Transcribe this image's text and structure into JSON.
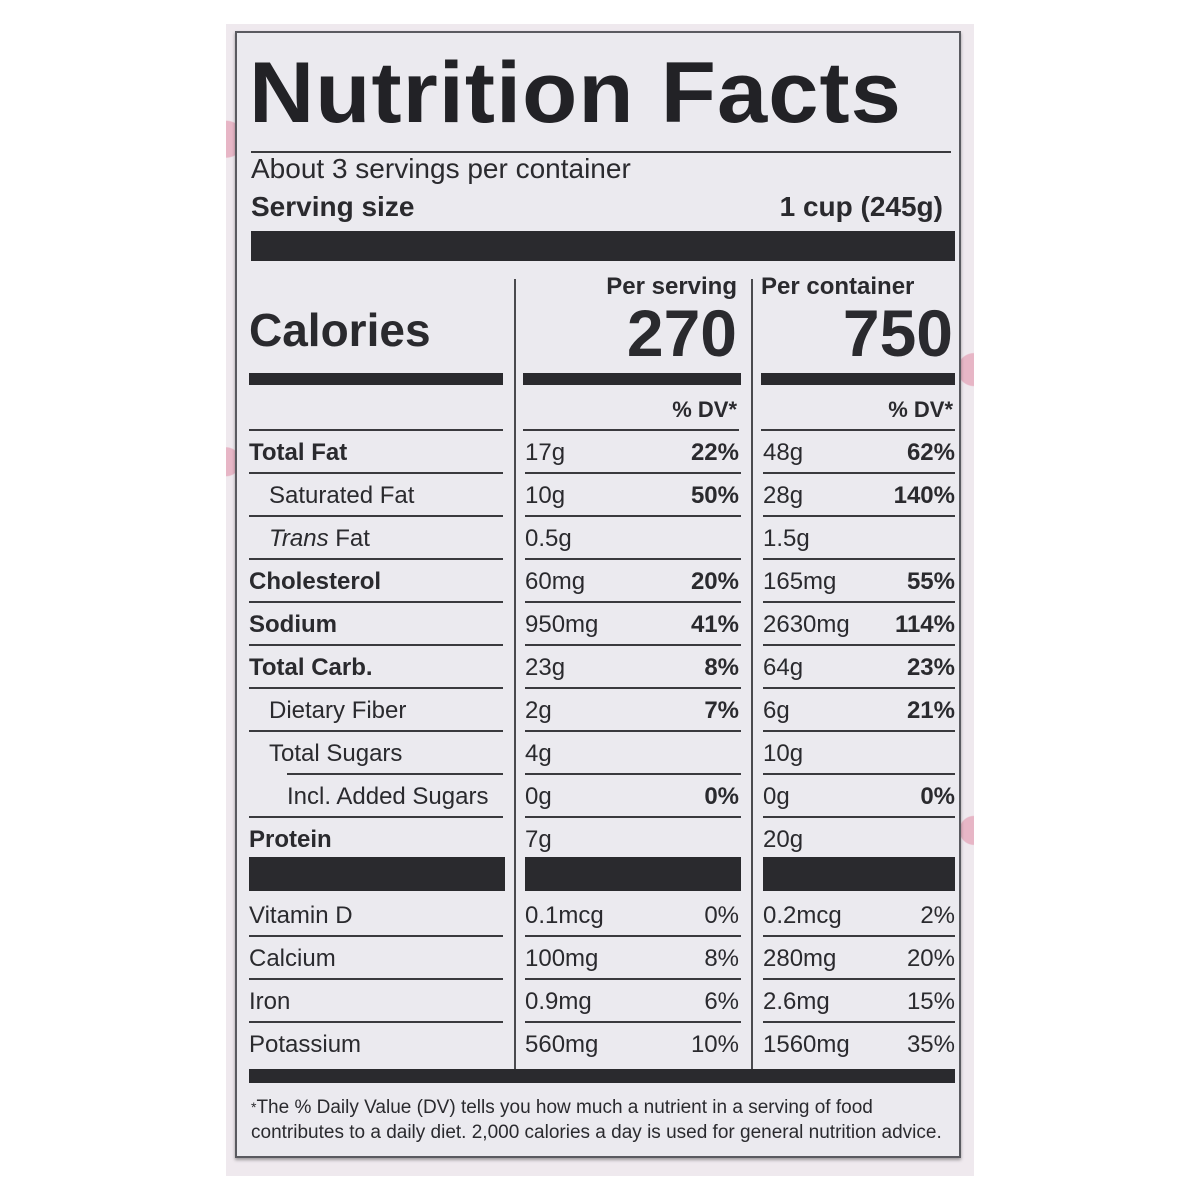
{
  "label": {
    "title": "Nutrition Facts",
    "servings_per_container": "About 3 servings per container",
    "serving_size_label": "Serving size",
    "serving_size_value": "1 cup (245g)",
    "calories_label": "Calories",
    "columns": [
      {
        "header": "Per serving",
        "calories": "270",
        "dv_header": "% DV*"
      },
      {
        "header": "Per container",
        "calories": "750",
        "dv_header": "% DV*"
      }
    ],
    "nutrients": [
      {
        "name": "Total Fat",
        "bold": true,
        "indent": 0,
        "serving": "17g",
        "serving_dv": "22%",
        "container": "48g",
        "container_dv": "62%"
      },
      {
        "name": "Saturated Fat",
        "bold": false,
        "indent": 1,
        "serving": "10g",
        "serving_dv": "50%",
        "container": "28g",
        "container_dv": "140%"
      },
      {
        "name_italic": "Trans",
        "name": " Fat",
        "bold": false,
        "indent": 1,
        "serving": "0.5g",
        "serving_dv": "",
        "container": "1.5g",
        "container_dv": ""
      },
      {
        "name": "Cholesterol",
        "bold": true,
        "indent": 0,
        "serving": "60mg",
        "serving_dv": "20%",
        "container": "165mg",
        "container_dv": "55%"
      },
      {
        "name": "Sodium",
        "bold": true,
        "indent": 0,
        "serving": "950mg",
        "serving_dv": "41%",
        "container": "2630mg",
        "container_dv": "114%"
      },
      {
        "name": "Total Carb.",
        "bold": true,
        "indent": 0,
        "serving": "23g",
        "serving_dv": "8%",
        "container": "64g",
        "container_dv": "23%"
      },
      {
        "name": "Dietary Fiber",
        "bold": false,
        "indent": 1,
        "serving": "2g",
        "serving_dv": "7%",
        "container": "6g",
        "container_dv": "21%"
      },
      {
        "name": "Total Sugars",
        "bold": false,
        "indent": 1,
        "serving": "4g",
        "serving_dv": "",
        "container": "10g",
        "container_dv": ""
      },
      {
        "name": "Incl. Added Sugars",
        "bold": false,
        "indent": 2,
        "serving": "0g",
        "serving_dv": "0%",
        "container": "0g",
        "container_dv": "0%"
      },
      {
        "name": "Protein",
        "bold": true,
        "indent": 0,
        "serving": "7g",
        "serving_dv": "",
        "container": "20g",
        "container_dv": ""
      }
    ],
    "vitamins": [
      {
        "name": "Vitamin D",
        "serving": "0.1mcg",
        "serving_dv": "0%",
        "container": "0.2mcg",
        "container_dv": "2%"
      },
      {
        "name": "Calcium",
        "serving": "100mg",
        "serving_dv": "8%",
        "container": "280mg",
        "container_dv": "20%"
      },
      {
        "name": "Iron",
        "serving": "0.9mg",
        "serving_dv": "6%",
        "container": "2.6mg",
        "container_dv": "15%"
      },
      {
        "name": "Potassium",
        "serving": "560mg",
        "serving_dv": "10%",
        "container": "1560mg",
        "container_dv": "35%"
      }
    ],
    "footnote_star": "*",
    "footnote": "The % Daily Value (DV) tells you how much a nutrient in a serving of food contributes to a daily diet. 2,000 calories a day is used for general nutrition advice."
  },
  "colors": {
    "label_bg": "#ebeaef",
    "ink": "#2a2a2e",
    "package_pink": "#e7b6c6"
  }
}
